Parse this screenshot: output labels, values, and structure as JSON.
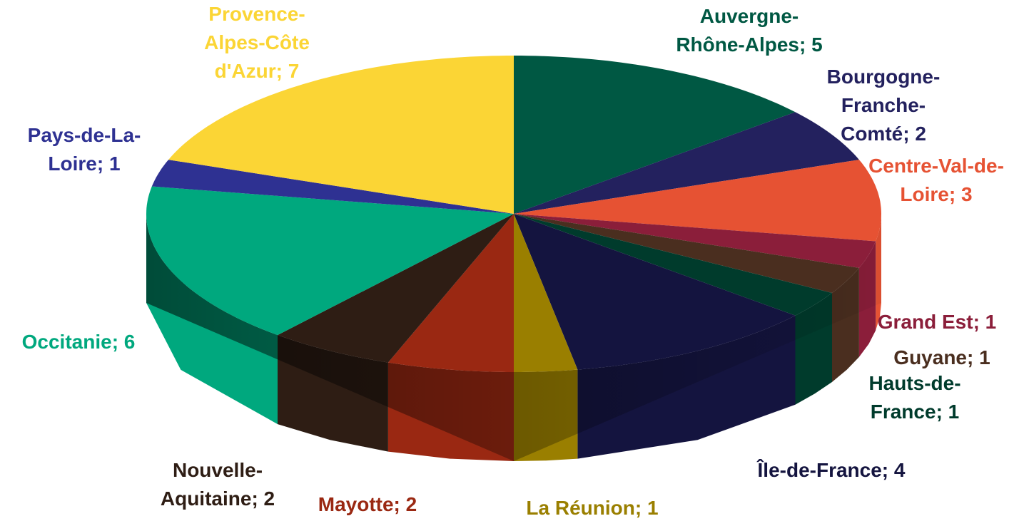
{
  "chart_data": {
    "type": "pie",
    "categories": [
      "Auvergne-Rhône-Alpes",
      "Bourgogne-Franche-Comté",
      "Centre-Val-de-Loire",
      "Grand Est",
      "Guyane",
      "Hauts-de-France",
      "Île-de-France",
      "La Réunion",
      "Mayotte",
      "Nouvelle-Aquitaine",
      "Occitanie",
      "Pays-de-La-Loire",
      "Provence-Alpes-Côte d'Azur"
    ],
    "values": [
      5,
      2,
      3,
      1,
      1,
      1,
      4,
      1,
      2,
      2,
      6,
      1,
      7
    ],
    "colors": [
      "#005843",
      "#23215e",
      "#e65233",
      "#8b1e3a",
      "#4a2e1f",
      "#003b2c",
      "#14143f",
      "#9a7f00",
      "#9a2812",
      "#2e1d14",
      "#00a87e",
      "#2e3192",
      "#fbd535"
    ],
    "label_separator": "; "
  }
}
